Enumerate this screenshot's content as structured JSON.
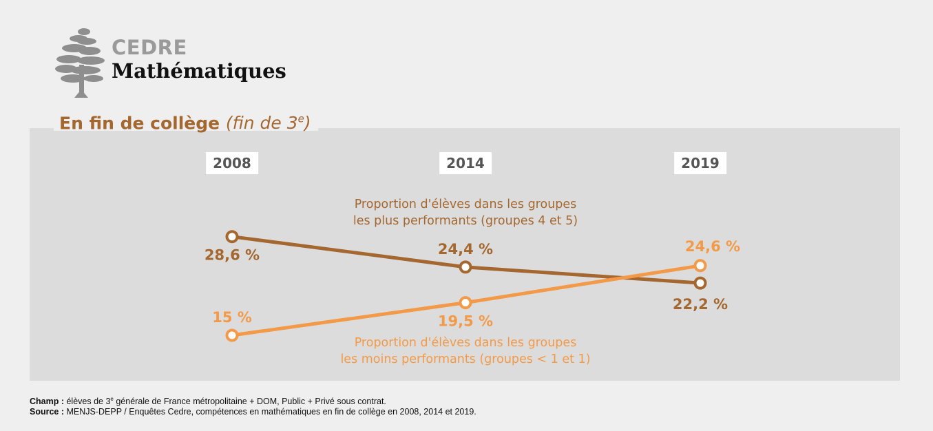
{
  "brand": {
    "title": "CEDRE",
    "subtitle": "Mathématiques"
  },
  "heading": {
    "main": "En fin de collège",
    "italic_pre": "(fin de 3",
    "italic_sup": "e",
    "italic_post": ")"
  },
  "colors": {
    "dark_series": "#a4672f",
    "light_series": "#f39a48",
    "panel": "#dcdcdc",
    "background": "#efefef"
  },
  "chart_data": {
    "type": "line",
    "x": [
      "2008",
      "2014",
      "2019"
    ],
    "series": [
      {
        "name": "Proportion d'élèves dans les groupes les plus performants (groupes 4 et 5)",
        "label_lines": [
          "Proportion d'élèves dans les groupes",
          "les plus performants (groupes 4 et 5)"
        ],
        "values": [
          28.6,
          24.4,
          22.2
        ],
        "labels": [
          "28,6 %",
          "24,4 %",
          "22,2 %"
        ],
        "color": "#a4672f"
      },
      {
        "name": "Proportion d'élèves dans les groupes les moins performants (groupes < 1 et 1)",
        "label_lines": [
          "Proportion d'élèves dans les groupes",
          "les moins performants (groupes < 1 et 1)"
        ],
        "values": [
          15,
          19.5,
          24.6
        ],
        "labels": [
          "15 %",
          "19,5 %",
          "24,6 %"
        ],
        "color": "#f39a48"
      }
    ],
    "title": "",
    "xlabel": "",
    "ylabel": "",
    "grid": false,
    "legend": "inline"
  },
  "notes": {
    "champ_label": "Champ :",
    "champ_pre": " élèves de 3",
    "champ_sup": "e",
    "champ_post": " générale de France métropolitaine + DOM, Public + Privé sous contrat.",
    "source_label": "Source :",
    "source_text": " MENJS-DEPP / Enquêtes Cedre, compétences en mathématiques en fin de collège en 2008, 2014 et 2019."
  }
}
